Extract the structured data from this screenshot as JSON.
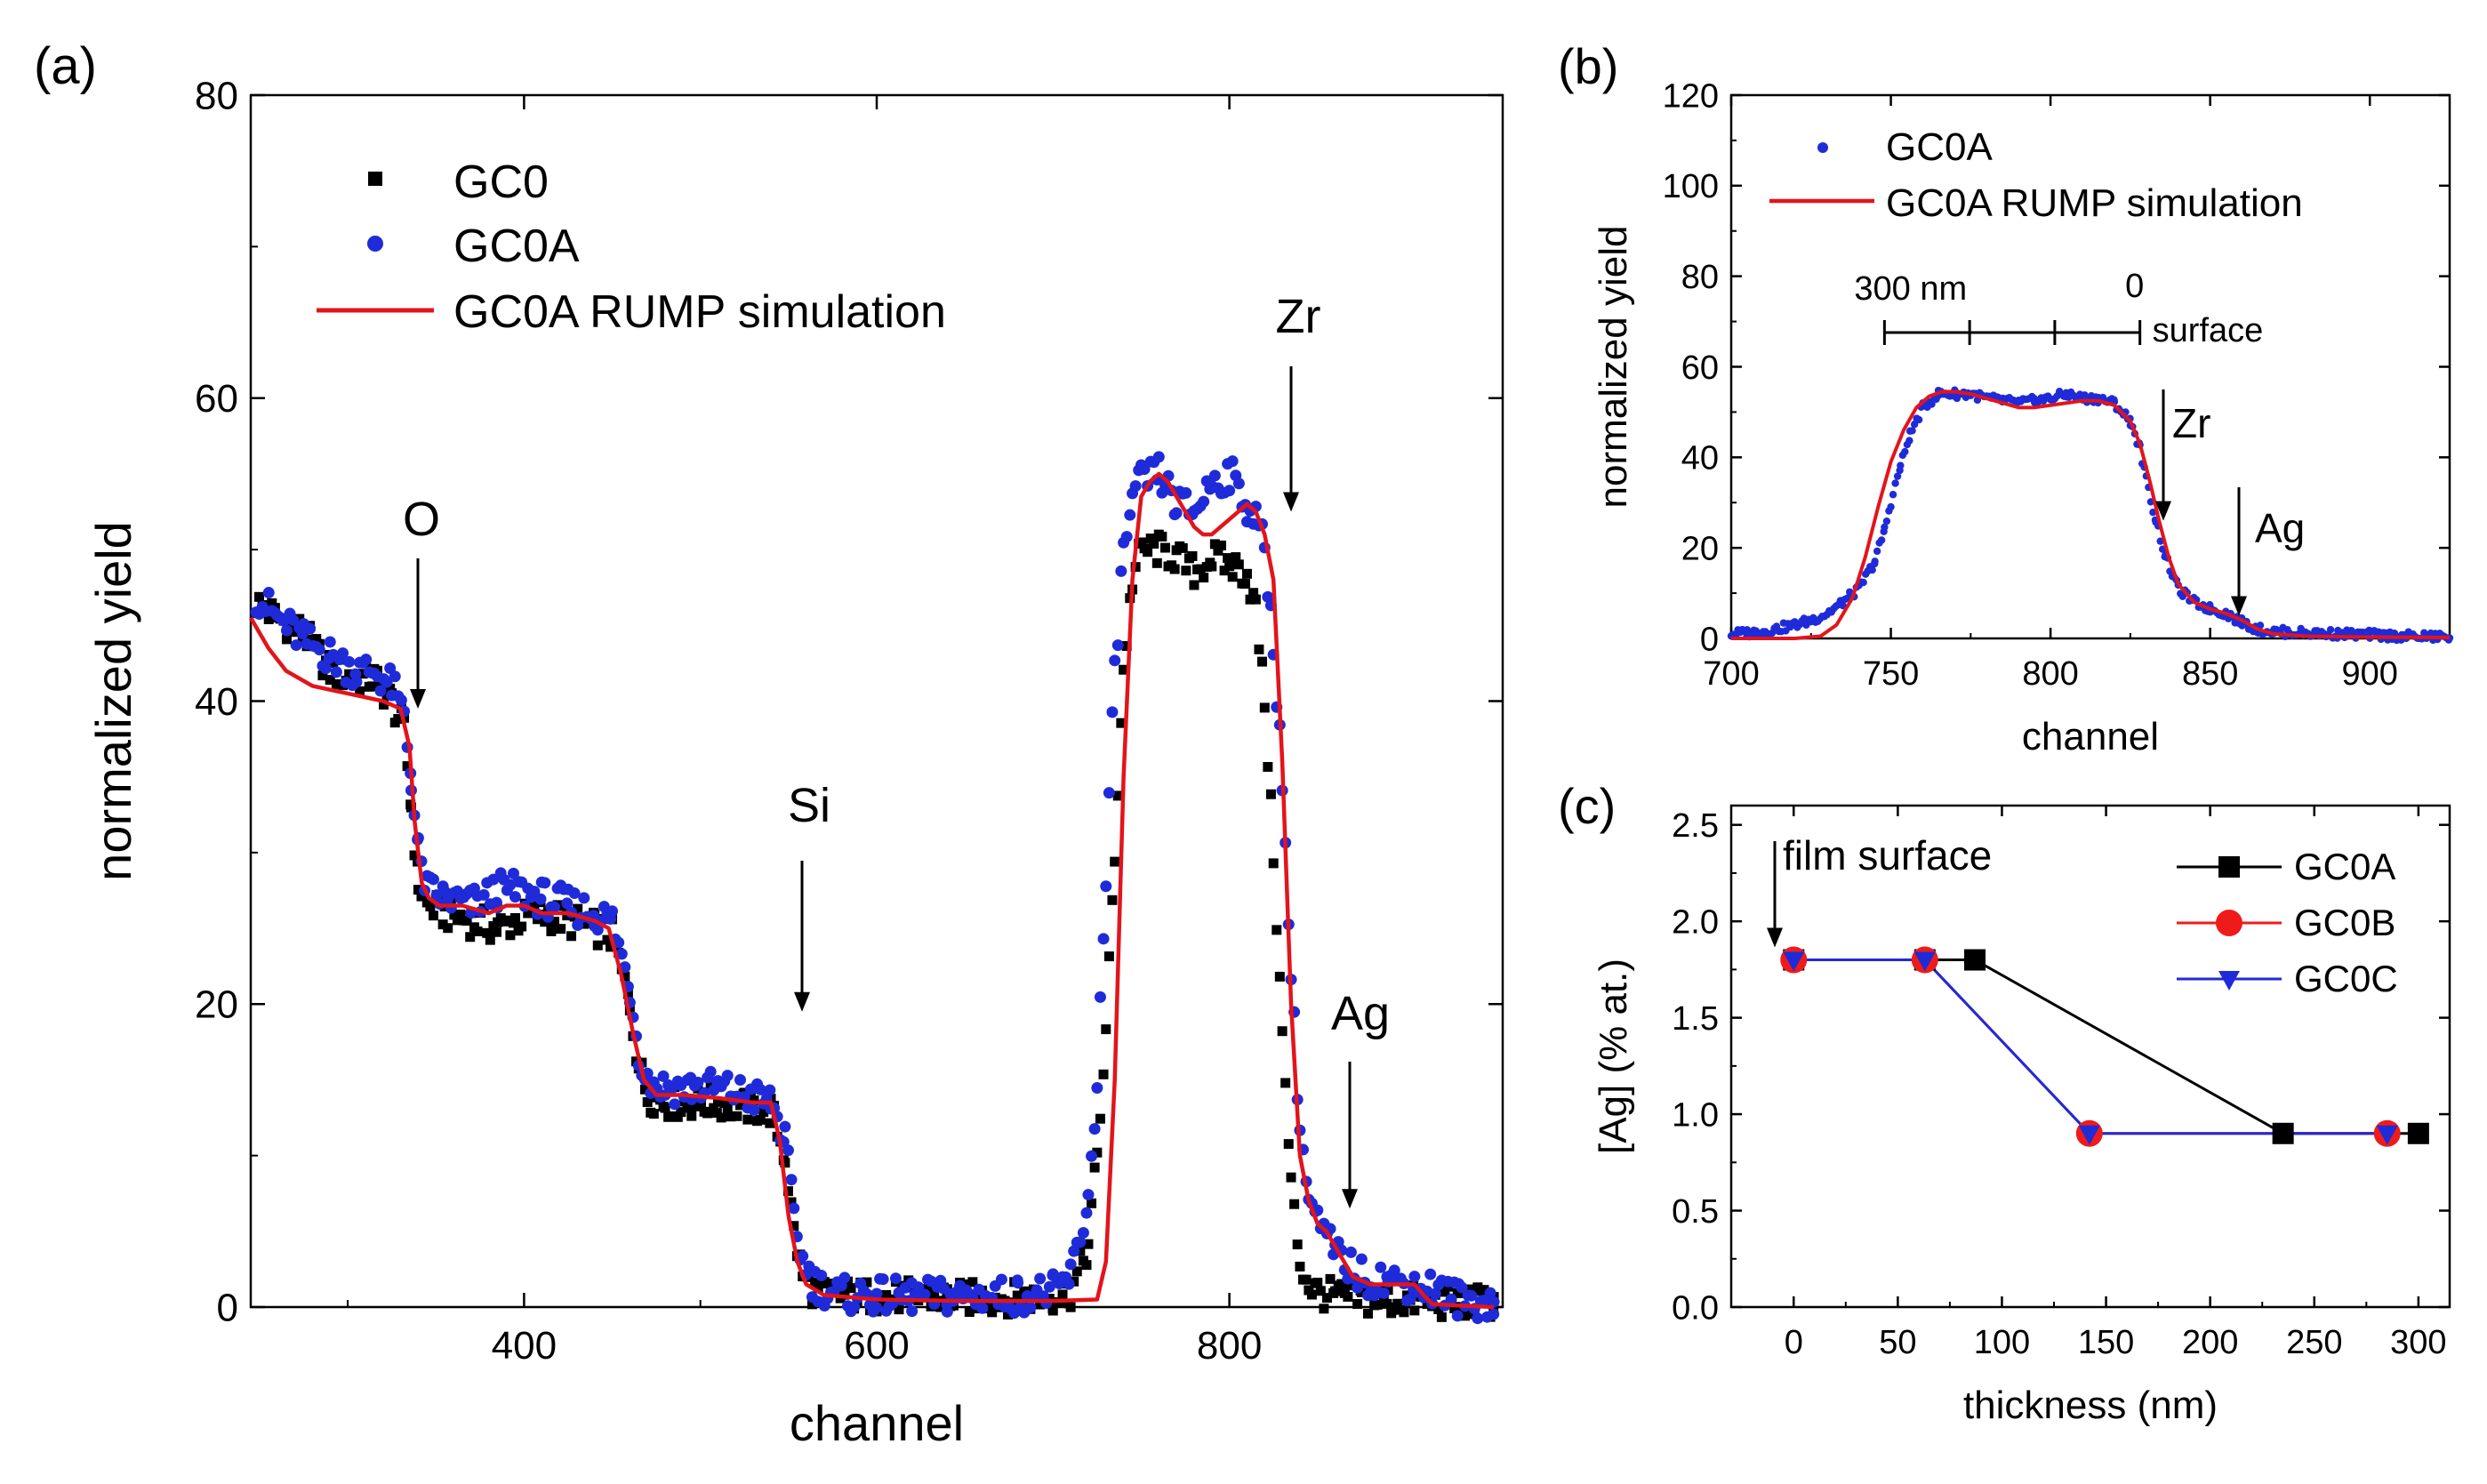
{
  "chart_data": [
    {
      "panel": "(a)",
      "type": "scatter",
      "xlabel": "channel",
      "ylabel": "normalized yield",
      "xlim": [
        245,
        955
      ],
      "ylim": [
        0,
        80
      ],
      "xticks": [
        400,
        600,
        800
      ],
      "yticks": [
        0,
        20,
        40,
        60,
        80
      ],
      "legend": [
        "GC0",
        "GC0A",
        "GC0A RUMP simulation"
      ],
      "annotations": [
        "O",
        "Si",
        "Zr",
        "Ag"
      ],
      "series": [
        {
          "name": "GC0",
          "style": "square",
          "color": "#000000",
          "x": [
            248,
            260,
            275,
            290,
            305,
            315,
            325,
            332,
            336,
            340,
            345,
            355,
            370,
            385,
            395,
            410,
            425,
            440,
            450,
            460,
            465,
            470,
            480,
            495,
            510,
            525,
            540,
            548,
            553,
            558,
            565,
            580,
            600,
            620,
            640,
            660,
            680,
            700,
            710,
            720,
            725,
            730,
            735,
            740,
            745,
            750,
            760,
            770,
            780,
            790,
            800,
            810,
            815,
            820,
            825,
            830,
            835,
            840,
            845,
            850,
            860,
            875,
            890,
            905,
            915,
            930,
            950
          ],
          "y": [
            46.5,
            45.5,
            44.5,
            42,
            41.5,
            41.5,
            40,
            38,
            33,
            28,
            26.5,
            26,
            25.5,
            25,
            25.5,
            26,
            25.5,
            25,
            24.5,
            20,
            16,
            14,
            13.5,
            13.5,
            13.5,
            13.2,
            13,
            10,
            5,
            2,
            1,
            0.8,
            0.7,
            0.7,
            0.6,
            0.6,
            0.6,
            0.7,
            1,
            4,
            10,
            18,
            30,
            42,
            48,
            50,
            50,
            49.5,
            48.5,
            49.5,
            49,
            48.5,
            46,
            40,
            30,
            18,
            8,
            3,
            1.5,
            1,
            0.7,
            0.5,
            0.4,
            0.4,
            0.3,
            0.3,
            0.3
          ]
        },
        {
          "name": "GC0A",
          "style": "circle",
          "color": "#1f2bd8",
          "x": [
            248,
            260,
            275,
            290,
            305,
            315,
            325,
            332,
            336,
            340,
            345,
            355,
            370,
            385,
            395,
            410,
            425,
            440,
            450,
            460,
            465,
            470,
            480,
            495,
            510,
            525,
            540,
            548,
            553,
            558,
            565,
            580,
            600,
            620,
            640,
            660,
            680,
            700,
            710,
            720,
            725,
            730,
            735,
            740,
            745,
            750,
            760,
            770,
            780,
            790,
            800,
            810,
            815,
            820,
            825,
            830,
            835,
            840,
            845,
            850,
            860,
            875,
            890,
            905,
            915,
            930,
            950
          ],
          "y": [
            47,
            45.5,
            44,
            43,
            42,
            42,
            41,
            39,
            35,
            30,
            27.5,
            27,
            26.5,
            27.5,
            27.5,
            27,
            26.5,
            26,
            25.5,
            21,
            17,
            15,
            14.5,
            14.5,
            14.5,
            14,
            13.5,
            11,
            6,
            3,
            1.5,
            0.8,
            0.7,
            0.7,
            0.7,
            0.7,
            0.8,
            1,
            2,
            7,
            15,
            28,
            42,
            50,
            53,
            54.5,
            55,
            53,
            52.5,
            54.5,
            55,
            53,
            52,
            50,
            44,
            35,
            22,
            12,
            7,
            5.5,
            3.5,
            2,
            1.8,
            1.5,
            1.2,
            0.5,
            0.3
          ]
        },
        {
          "name": "GC0A RUMP simulation",
          "style": "line",
          "color": "#e3141b",
          "x": [
            245,
            255,
            265,
            280,
            300,
            320,
            330,
            335,
            338,
            342,
            346,
            352,
            365,
            380,
            390,
            400,
            410,
            425,
            440,
            448,
            455,
            462,
            468,
            475,
            490,
            510,
            530,
            540,
            545,
            550,
            555,
            560,
            570,
            600,
            650,
            700,
            725,
            730,
            735,
            740,
            745,
            750,
            755,
            760,
            765,
            770,
            775,
            780,
            785,
            790,
            795,
            800,
            805,
            810,
            815,
            820,
            825,
            830,
            835,
            840,
            845,
            850,
            855,
            860,
            870,
            880,
            890,
            900,
            905,
            910,
            915,
            930,
            950
          ],
          "y": [
            45.5,
            43.5,
            42,
            41,
            40.5,
            40,
            39.5,
            37,
            32,
            28,
            27,
            26.5,
            26.5,
            26,
            26.5,
            26.5,
            26,
            26,
            25.5,
            25,
            22,
            18,
            15,
            14,
            14,
            13.8,
            13.5,
            13.5,
            11,
            6,
            3,
            1.5,
            0.8,
            0.5,
            0.4,
            0.4,
            0.5,
            3,
            15,
            35,
            48,
            53.5,
            54.5,
            55,
            54.5,
            53.5,
            52.5,
            51.5,
            51,
            51,
            51.5,
            52,
            52.5,
            53,
            52.5,
            51,
            48,
            36,
            20,
            10,
            7,
            5.5,
            5,
            4,
            2,
            1.5,
            1.5,
            1.5,
            1.5,
            0.8,
            0.2,
            0.1,
            0
          ]
        }
      ]
    },
    {
      "panel": "(b)",
      "type": "scatter",
      "xlabel": "channel",
      "ylabel": "normalized yield",
      "xlim": [
        700,
        925
      ],
      "ylim": [
        0,
        120
      ],
      "xticks": [
        700,
        750,
        800,
        850,
        900
      ],
      "yticks": [
        0,
        20,
        40,
        60,
        80,
        100,
        120
      ],
      "legend": [
        "GC0A",
        "GC0A RUMP simulation"
      ],
      "annotations": [
        "Zr",
        "Ag"
      ],
      "depth_scale": {
        "left_label": "300 nm",
        "right_label": "0",
        "end_label": "surface",
        "x_range": [
          748,
          828
        ]
      },
      "series": [
        {
          "name": "GC0A",
          "style": "dot",
          "color": "#1f2bd8",
          "x": [
            700,
            705,
            710,
            715,
            720,
            725,
            730,
            735,
            740,
            745,
            748,
            750,
            753,
            756,
            760,
            765,
            770,
            775,
            780,
            785,
            790,
            795,
            800,
            805,
            810,
            815,
            820,
            825,
            828,
            830,
            833,
            836,
            840,
            845,
            850,
            855,
            860,
            865,
            870,
            880,
            890,
            900,
            910,
            925
          ],
          "y": [
            1,
            1.2,
            1.5,
            2.2,
            3,
            4,
            5.5,
            8,
            11,
            17,
            24,
            30,
            38,
            45,
            51,
            54,
            54,
            54,
            53,
            52.5,
            52,
            52.5,
            53,
            54,
            53,
            53,
            52,
            48,
            42,
            35,
            26,
            18,
            11,
            8,
            6.5,
            5.5,
            3.5,
            2,
            1.5,
            1.2,
            1,
            0.8,
            0.5,
            0.3
          ]
        },
        {
          "name": "GC0A RUMP simulation",
          "style": "line",
          "color": "#e3141b",
          "x": [
            700,
            720,
            728,
            733,
            738,
            742,
            746,
            750,
            754,
            758,
            762,
            766,
            770,
            775,
            780,
            785,
            790,
            795,
            800,
            805,
            810,
            815,
            820,
            825,
            828,
            831,
            834,
            837,
            840,
            845,
            850,
            855,
            860,
            865,
            870,
            880,
            900,
            925
          ],
          "y": [
            0,
            0,
            0.5,
            3,
            9,
            18,
            29,
            39,
            46,
            51,
            53.5,
            54.5,
            54.5,
            54,
            53,
            52,
            51,
            51,
            51.5,
            52,
            52.5,
            52.5,
            51.5,
            48,
            43,
            35,
            26,
            18,
            12,
            8,
            6.5,
            5.5,
            4,
            2,
            1,
            0.5,
            0.3,
            0.2
          ]
        }
      ]
    },
    {
      "panel": "(c)",
      "type": "line",
      "xlabel": "thickness (nm)",
      "ylabel": "[Ag] (% at.)",
      "xlim": [
        -30,
        315
      ],
      "ylim": [
        0,
        2.6
      ],
      "xticks": [
        0,
        50,
        100,
        150,
        200,
        250,
        300
      ],
      "yticks": [
        0.0,
        0.5,
        1.0,
        1.5,
        2.0,
        2.5
      ],
      "annotation": "film surface",
      "series": [
        {
          "name": "GC0A",
          "marker": "square",
          "color": "#000000",
          "x": [
            0,
            63,
            87,
            235,
            300
          ],
          "y": [
            1.8,
            1.8,
            1.8,
            0.9,
            0.9
          ]
        },
        {
          "name": "GC0B",
          "marker": "circle",
          "color": "#ef1b1b",
          "x": [
            0,
            63,
            142,
            285
          ],
          "y": [
            1.8,
            1.8,
            0.9,
            0.9
          ]
        },
        {
          "name": "GC0C",
          "marker": "triangle-down",
          "color": "#1f2bd8",
          "x": [
            0,
            63,
            142,
            285
          ],
          "y": [
            1.8,
            1.8,
            0.9,
            0.9
          ]
        }
      ]
    }
  ]
}
